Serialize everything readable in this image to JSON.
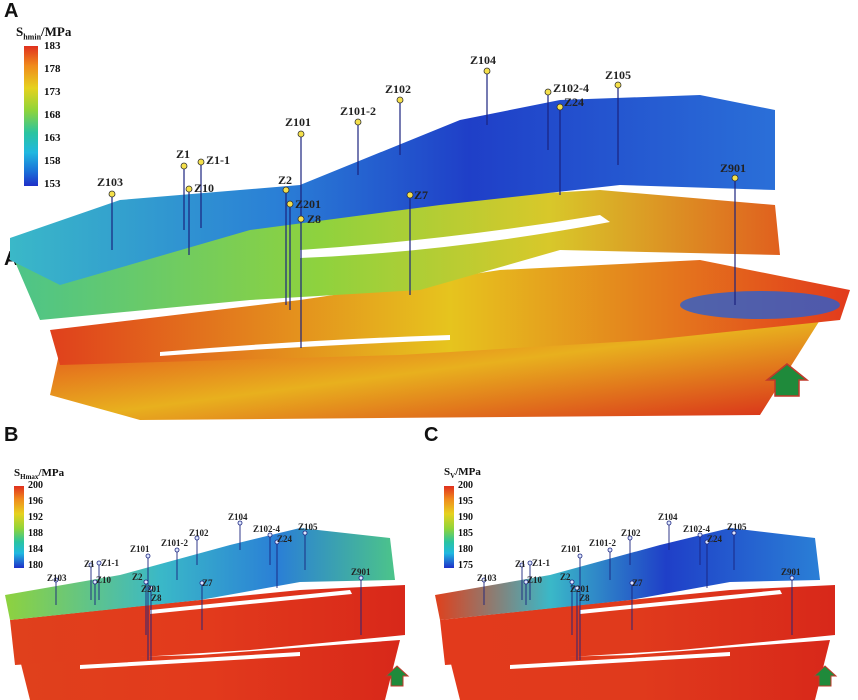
{
  "panels": {
    "A": {
      "letter": "A",
      "colorbar": {
        "title_main": "S",
        "title_sub": "hmin",
        "title_unit": "/MPa",
        "ticks": [
          "183",
          "178",
          "173",
          "168",
          "163",
          "158",
          "153"
        ]
      }
    },
    "B": {
      "letter": "B",
      "colorbar": {
        "title_main": "S",
        "title_sub": "Hmax",
        "title_unit": "/MPa",
        "ticks": [
          "200",
          "196",
          "192",
          "188",
          "184",
          "180"
        ]
      }
    },
    "C": {
      "letter": "C",
      "colorbar": {
        "title_main": "S",
        "title_sub": "V",
        "title_unit": "/MPa",
        "ticks": [
          "200",
          "195",
          "190",
          "185",
          "180",
          "175"
        ]
      }
    }
  },
  "wells": [
    "Z103",
    "Z1",
    "Z1-1",
    "Z10",
    "Z2",
    "Z101",
    "Z101-2",
    "Z102",
    "Z104",
    "Z102-4",
    "Z24",
    "Z105",
    "Z901",
    "Z7",
    "Z8",
    "Z201"
  ],
  "colors": {
    "north_arrow": "#1f8a3b",
    "north_arrow_edge": "#c0392b",
    "well_line": "#1a237e",
    "well_head": "#f5e04a"
  }
}
